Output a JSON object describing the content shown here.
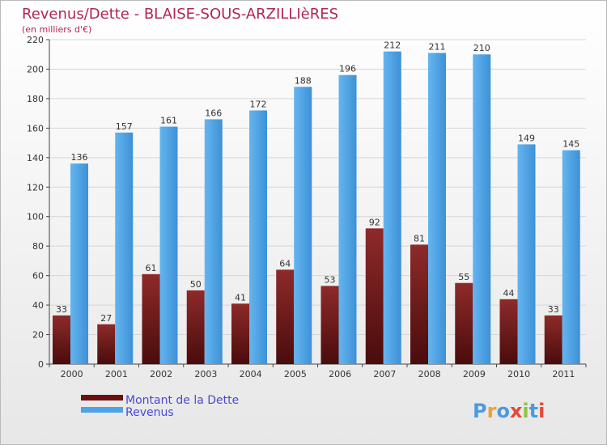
{
  "chart_data": {
    "type": "bar",
    "title": "Revenus/Dette - BLAISE-SOUS-ARZILLIèRES",
    "subtitle": "(en milliers d'€)",
    "categories": [
      "2000",
      "2001",
      "2002",
      "2003",
      "2004",
      "2005",
      "2006",
      "2007",
      "2008",
      "2009",
      "2010",
      "2011"
    ],
    "series": [
      {
        "name": "Montant de la Dette",
        "color": "#7a1f1f",
        "values": [
          33,
          27,
          61,
          50,
          41,
          64,
          53,
          92,
          81,
          55,
          44,
          33
        ]
      },
      {
        "name": "Revenus",
        "color": "#4da3e8",
        "values": [
          136,
          157,
          161,
          166,
          172,
          188,
          196,
          212,
          211,
          210,
          149,
          145
        ]
      }
    ],
    "ylim": [
      0,
      220
    ],
    "yticks": [
      0,
      20,
      40,
      60,
      80,
      100,
      120,
      140,
      160,
      180,
      200,
      220
    ],
    "grid": true,
    "legend_position": "bottom-left"
  },
  "logo": {
    "text": "Proxiti"
  }
}
